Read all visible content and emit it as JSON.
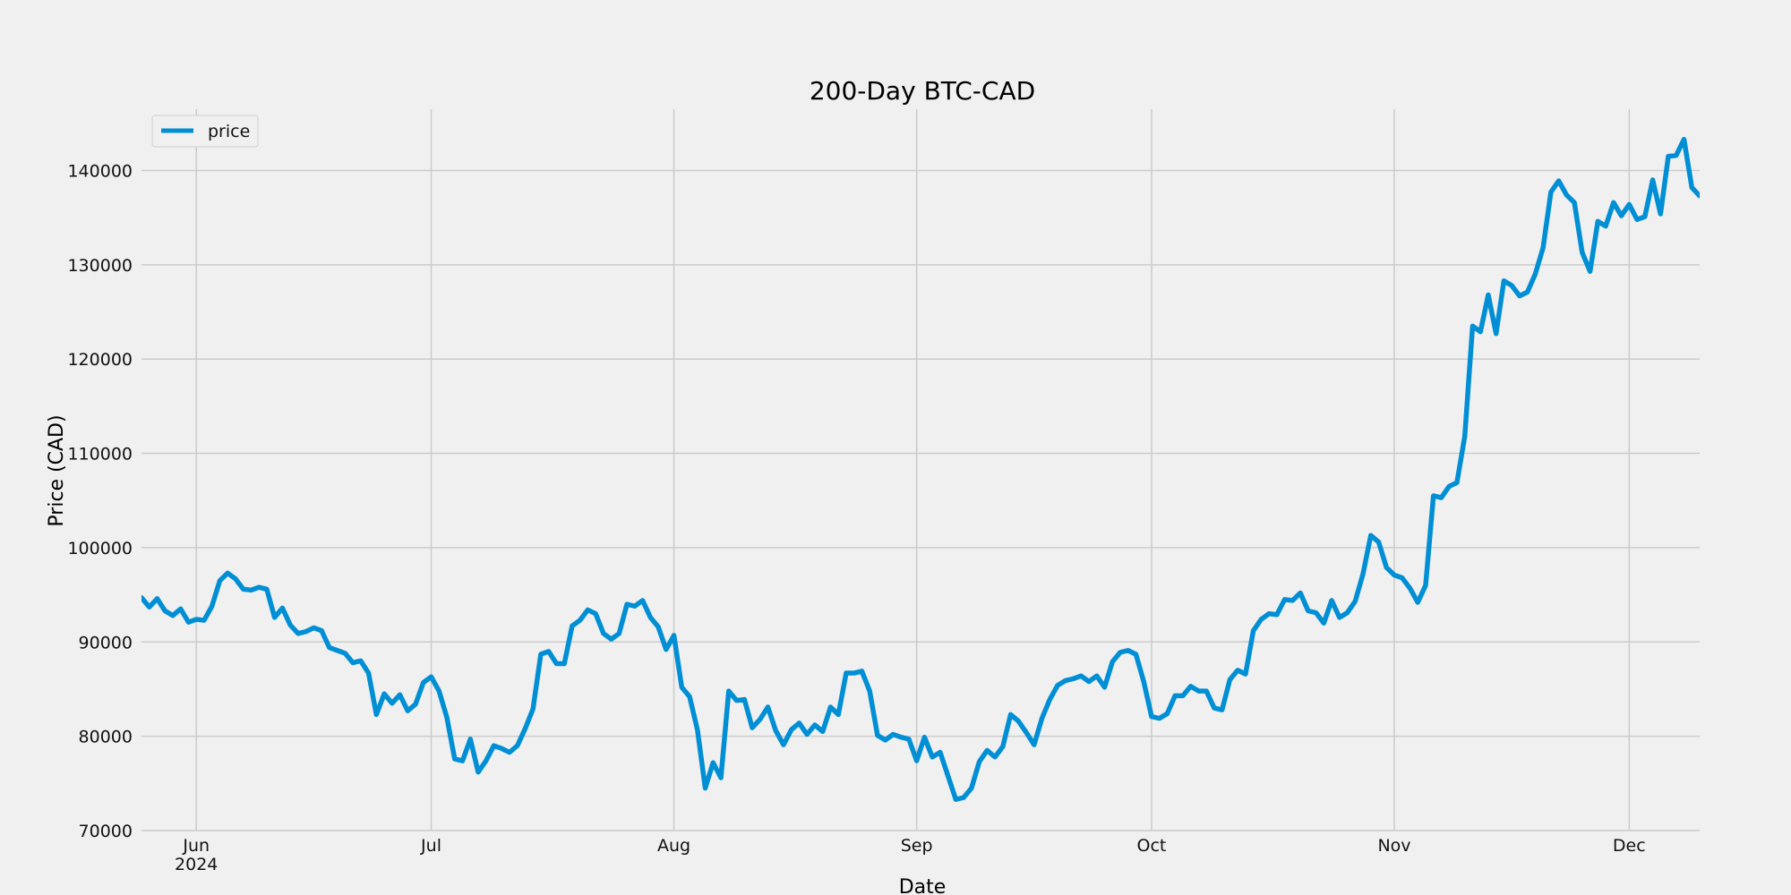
{
  "chart_data": {
    "type": "line",
    "title": "200-Day BTC-CAD",
    "xlabel": "Date",
    "ylabel": "Price (CAD)",
    "legend": {
      "position": "top-left",
      "entries": [
        "price"
      ]
    },
    "grid": true,
    "colors": {
      "background": "#f0f0f0",
      "line": "#008fd5",
      "grid": "#cbcbcb"
    },
    "ylim": [
      70000,
      146500
    ],
    "xlim": [
      "2024-05-25",
      "2024-12-10"
    ],
    "y_ticks": [
      70000,
      80000,
      90000,
      100000,
      110000,
      120000,
      130000,
      140000
    ],
    "x_ticks": [
      {
        "date": "2024-06-01",
        "label": "Jun",
        "sublabel": "2024"
      },
      {
        "date": "2024-07-01",
        "label": "Jul",
        "sublabel": ""
      },
      {
        "date": "2024-08-01",
        "label": "Aug",
        "sublabel": ""
      },
      {
        "date": "2024-09-01",
        "label": "Sep",
        "sublabel": ""
      },
      {
        "date": "2024-10-01",
        "label": "Oct",
        "sublabel": ""
      },
      {
        "date": "2024-11-01",
        "label": "Nov",
        "sublabel": ""
      },
      {
        "date": "2024-12-01",
        "label": "Dec",
        "sublabel": ""
      }
    ],
    "series": [
      {
        "name": "price",
        "start_date": "2024-05-25",
        "values": [
          94700,
          93700,
          94600,
          93300,
          92800,
          93500,
          92100,
          92400,
          92300,
          93800,
          96500,
          97300,
          96700,
          95600,
          95500,
          95800,
          95600,
          92600,
          93600,
          91800,
          90900,
          91100,
          91500,
          91200,
          89400,
          89100,
          88800,
          87800,
          88000,
          86700,
          82300,
          84500,
          83500,
          84400,
          82700,
          83400,
          85700,
          86300,
          84800,
          82000,
          77600,
          77400,
          79700,
          76200,
          77400,
          79000,
          78700,
          78300,
          79000,
          80800,
          82900,
          88700,
          89000,
          87700,
          87700,
          91700,
          92300,
          93400,
          93000,
          90900,
          90300,
          90900,
          94000,
          93800,
          94400,
          92600,
          91600,
          89200,
          90700,
          85200,
          84200,
          80700,
          74500,
          77200,
          75600,
          84800,
          83800,
          83900,
          80900,
          81800,
          83100,
          80600,
          79100,
          80700,
          81400,
          80200,
          81200,
          80500,
          83100,
          82300,
          86700,
          86700,
          86900,
          84800,
          80100,
          79600,
          80200,
          79900,
          79700,
          77400,
          79900,
          77800,
          78300,
          75800,
          73300,
          73500,
          74500,
          77300,
          78500,
          77800,
          78900,
          82300,
          81600,
          80400,
          79100,
          81900,
          83900,
          85400,
          85900,
          86100,
          86400,
          85800,
          86400,
          85200,
          87900,
          88900,
          89100,
          88700,
          85800,
          82100,
          81900,
          82400,
          84300,
          84300,
          85300,
          84800,
          84800,
          83000,
          82800,
          86000,
          87000,
          86600,
          91200,
          92400,
          93000,
          92900,
          94500,
          94400,
          95200,
          93300,
          93100,
          92000,
          94400,
          92600,
          93100,
          94300,
          97200,
          101300,
          100600,
          97900,
          97100,
          96800,
          95700,
          94200,
          96000,
          105500,
          105300,
          106500,
          106900,
          111800,
          123500,
          122900,
          126800,
          122700,
          128300,
          127800,
          126700,
          127100,
          129000,
          131800,
          137700,
          138900,
          137400,
          136600,
          131300,
          129300,
          134600,
          134100,
          136600,
          135200,
          136400,
          134800,
          135100,
          139000,
          135400,
          141500,
          141600,
          143300,
          138200,
          137300
        ]
      }
    ]
  }
}
